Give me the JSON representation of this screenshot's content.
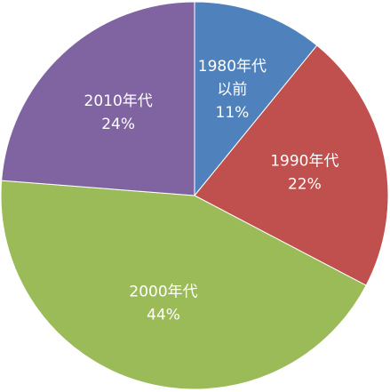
{
  "chart_data": {
    "type": "pie",
    "categories": [
      [
        "1980年代",
        "以前"
      ],
      [
        "1990年代"
      ],
      [
        "2000年代"
      ],
      [
        "2010年代"
      ]
    ],
    "values": [
      11,
      22,
      44,
      24
    ],
    "value_labels": [
      "11%",
      "22%",
      "44%",
      "24%"
    ],
    "colors": [
      "#4f81bd",
      "#c0504d",
      "#9bbb59",
      "#8064a2"
    ]
  }
}
